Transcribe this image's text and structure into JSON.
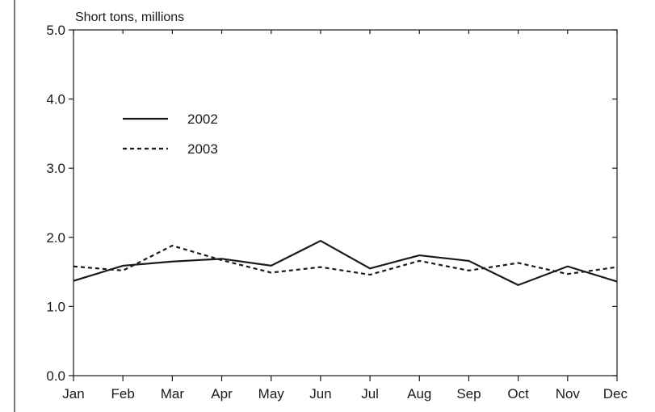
{
  "chart_data": {
    "type": "line",
    "title": "",
    "ylabel": "Short tons, millions",
    "xlabel": "",
    "categories": [
      "Jan",
      "Feb",
      "Mar",
      "Apr",
      "May",
      "Jun",
      "Jul",
      "Aug",
      "Sep",
      "Oct",
      "Nov",
      "Dec"
    ],
    "yticks": [
      "0.0",
      "1.0",
      "2.0",
      "3.0",
      "4.0",
      "5.0"
    ],
    "ylim": [
      0,
      5
    ],
    "grid": false,
    "legend_position": "upper-left",
    "series": [
      {
        "name": "2002",
        "line_style": "solid",
        "color": "#1a1a1a",
        "values": [
          1.37,
          1.59,
          1.65,
          1.69,
          1.59,
          1.95,
          1.55,
          1.74,
          1.66,
          1.31,
          1.58,
          1.36
        ]
      },
      {
        "name": "2003",
        "line_style": "dashed",
        "color": "#1a1a1a",
        "values": [
          1.58,
          1.52,
          1.88,
          1.67,
          1.49,
          1.57,
          1.46,
          1.66,
          1.52,
          1.63,
          1.47,
          1.57
        ]
      }
    ]
  }
}
